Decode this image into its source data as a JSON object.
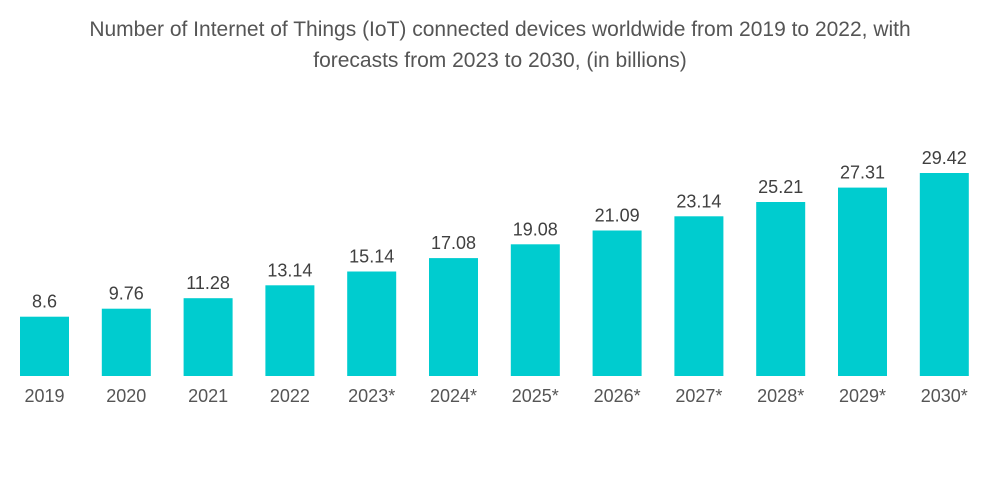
{
  "chart_data": {
    "type": "bar",
    "title_lines": [
      "Number of Internet of Things (IoT) connected devices worldwide from 2019 to 2022, with",
      "forecasts from 2023 to 2030, (in billions)"
    ],
    "title": "Number of Internet of Things (IoT) connected devices worldwide from 2019 to 2022, with forecasts from 2023 to 2030, (in billions)",
    "categories": [
      "2019",
      "2020",
      "2021",
      "2022",
      "2023*",
      "2024*",
      "2025*",
      "2026*",
      "2027*",
      "2028*",
      "2029*",
      "2030*"
    ],
    "values": [
      8.6,
      9.76,
      11.28,
      13.14,
      15.14,
      17.08,
      19.08,
      21.09,
      23.14,
      25.21,
      27.31,
      29.42
    ],
    "value_labels": [
      "8.6",
      "9.76",
      "11.28",
      "13.14",
      "15.14",
      "17.08",
      "19.08",
      "21.09",
      "23.14",
      "25.21",
      "27.31",
      "29.42"
    ],
    "xlabel": "",
    "ylabel": "",
    "ylim": [
      0,
      29.42
    ],
    "grid": false,
    "legend": "none",
    "bar_color": "#00CCCF"
  }
}
